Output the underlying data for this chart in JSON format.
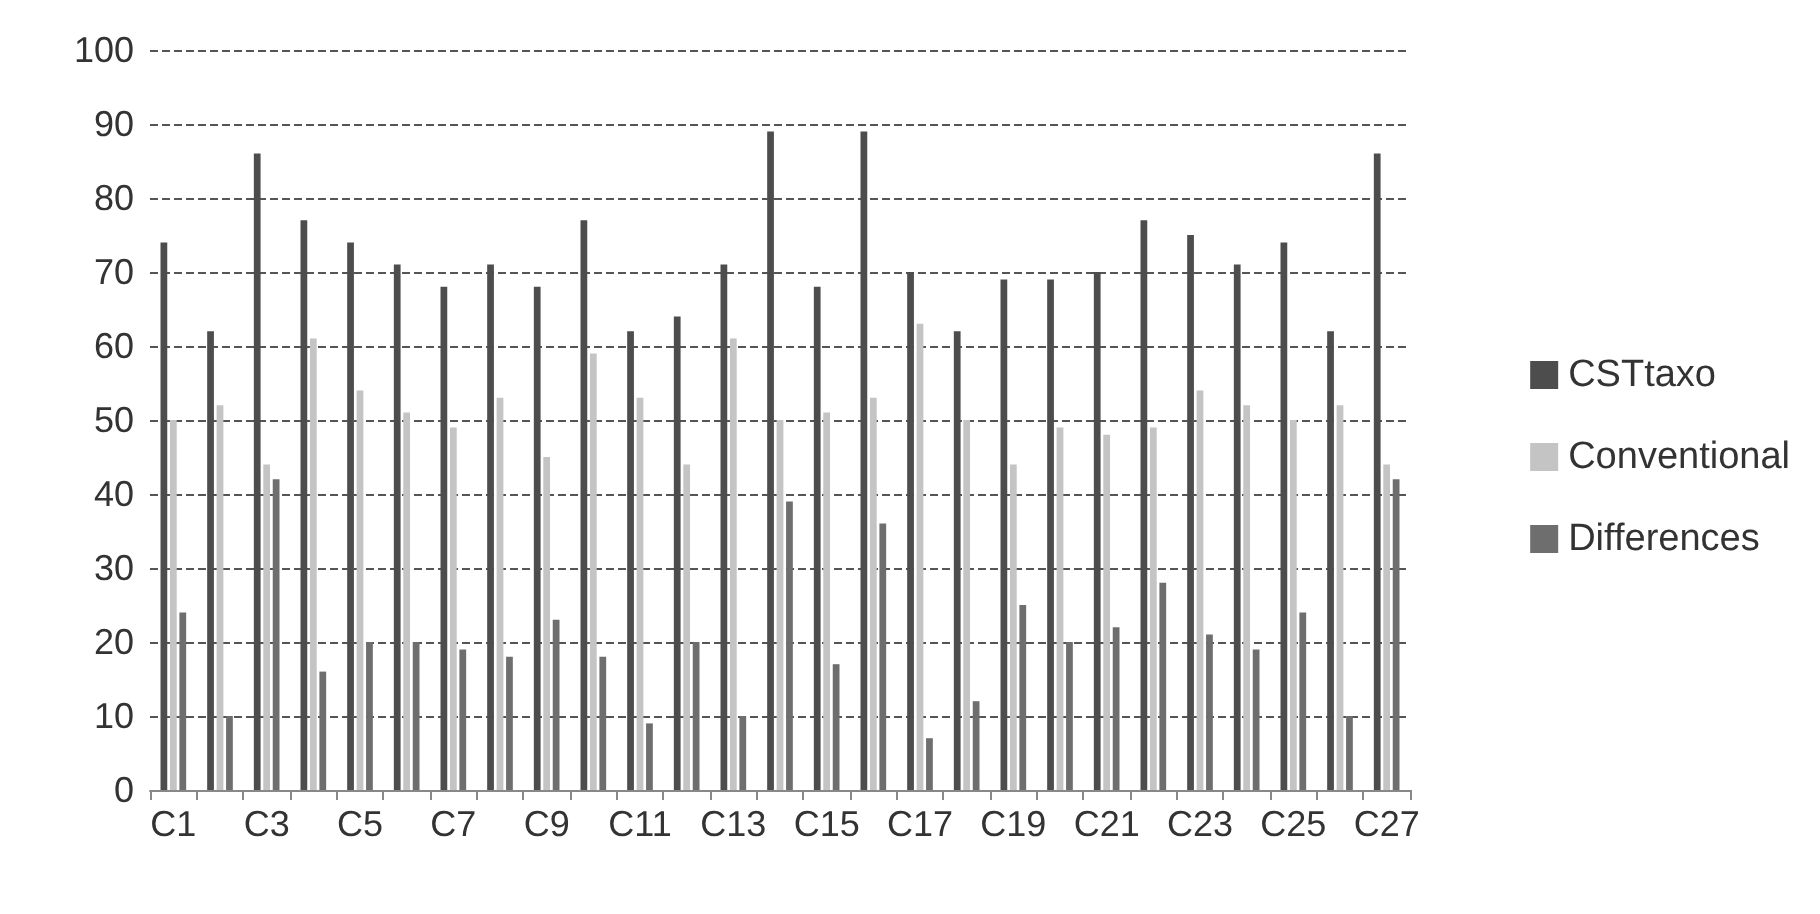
{
  "chart_data": {
    "type": "bar",
    "categories": [
      "C1",
      null,
      "C3",
      null,
      "C5",
      null,
      "C7",
      null,
      "C9",
      null,
      "C11",
      null,
      "C13",
      null,
      "C15",
      null,
      "C17",
      null,
      "C19",
      null,
      "C21",
      null,
      "C23",
      null,
      "C25",
      null,
      "C27"
    ],
    "series": [
      {
        "name": "CSTtaxo",
        "color": "#4d4d4d",
        "values": [
          74,
          62,
          86,
          77,
          74,
          71,
          68,
          71,
          68,
          77,
          62,
          64,
          71,
          89,
          68,
          89,
          70,
          62,
          69,
          69,
          70,
          77,
          75,
          71,
          74,
          62,
          86
        ]
      },
      {
        "name": "Conventional",
        "color": "#c4c4c4",
        "values": [
          50,
          52,
          44,
          61,
          54,
          51,
          49,
          53,
          45,
          59,
          53,
          44,
          61,
          50,
          51,
          53,
          63,
          50,
          44,
          49,
          48,
          49,
          54,
          52,
          50,
          52,
          44
        ]
      },
      {
        "name": "Differences",
        "color": "#6e6e6e",
        "values": [
          24,
          10,
          42,
          16,
          20,
          20,
          19,
          18,
          23,
          18,
          9,
          20,
          10,
          39,
          17,
          36,
          7,
          12,
          25,
          20,
          22,
          28,
          21,
          19,
          24,
          10,
          42
        ]
      }
    ],
    "ylim": [
      0,
      100
    ],
    "yticks": [
      0,
      10,
      20,
      30,
      40,
      50,
      60,
      70,
      80,
      90,
      100
    ],
    "grid": "y",
    "legend": "right"
  }
}
